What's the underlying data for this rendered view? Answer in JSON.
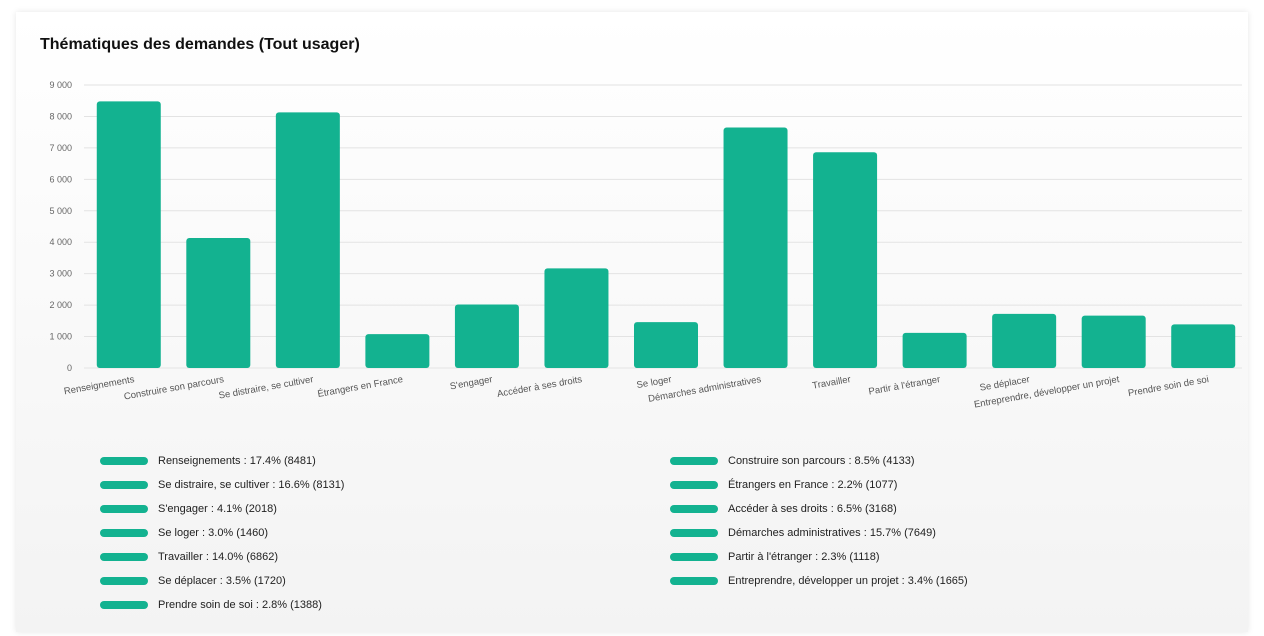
{
  "title": "Thématiques des demandes (Tout usager)",
  "colors": {
    "bar": "#13b290",
    "grid": "#e3e3e3"
  },
  "chart_data": {
    "type": "bar",
    "title": "Thématiques des demandes (Tout usager)",
    "xlabel": "",
    "ylabel": "",
    "ylim": [
      0,
      9000
    ],
    "yticks": [
      0,
      1000,
      2000,
      3000,
      4000,
      5000,
      6000,
      7000,
      8000,
      9000
    ],
    "ytick_labels": [
      "0",
      "1 000",
      "2 000",
      "3 000",
      "4 000",
      "5 000",
      "6 000",
      "7 000",
      "8 000",
      "9 000"
    ],
    "grid": true,
    "legend_position": "bottom",
    "categories": [
      "Renseignements",
      "Construire son parcours",
      "Se distraire, se cultiver",
      "Étrangers en France",
      "S'engager",
      "Accéder à ses droits",
      "Se loger",
      "Démarches administratives",
      "Travailler",
      "Partir à l'étranger",
      "Se déplacer",
      "Entreprendre, développer un projet",
      "Prendre soin de soi"
    ],
    "values": [
      8481,
      4133,
      8131,
      1077,
      2018,
      3168,
      1460,
      7649,
      6862,
      1118,
      1720,
      1665,
      1388
    ],
    "legend": [
      "Renseignements : 17.4% (8481)",
      "Construire son parcours : 8.5% (4133)",
      "Se distraire, se cultiver : 16.6% (8131)",
      "Étrangers en France : 2.2% (1077)",
      "S'engager : 4.1% (2018)",
      "Accéder à ses droits : 6.5% (3168)",
      "Se loger : 3.0% (1460)",
      "Démarches administratives : 15.7% (7649)",
      "Travailler : 14.0% (6862)",
      "Partir à l'étranger : 2.3% (1118)",
      "Se déplacer : 3.5% (1720)",
      "Entreprendre, développer un projet : 3.4% (1665)",
      "Prendre soin de soi : 2.8% (1388)"
    ]
  }
}
